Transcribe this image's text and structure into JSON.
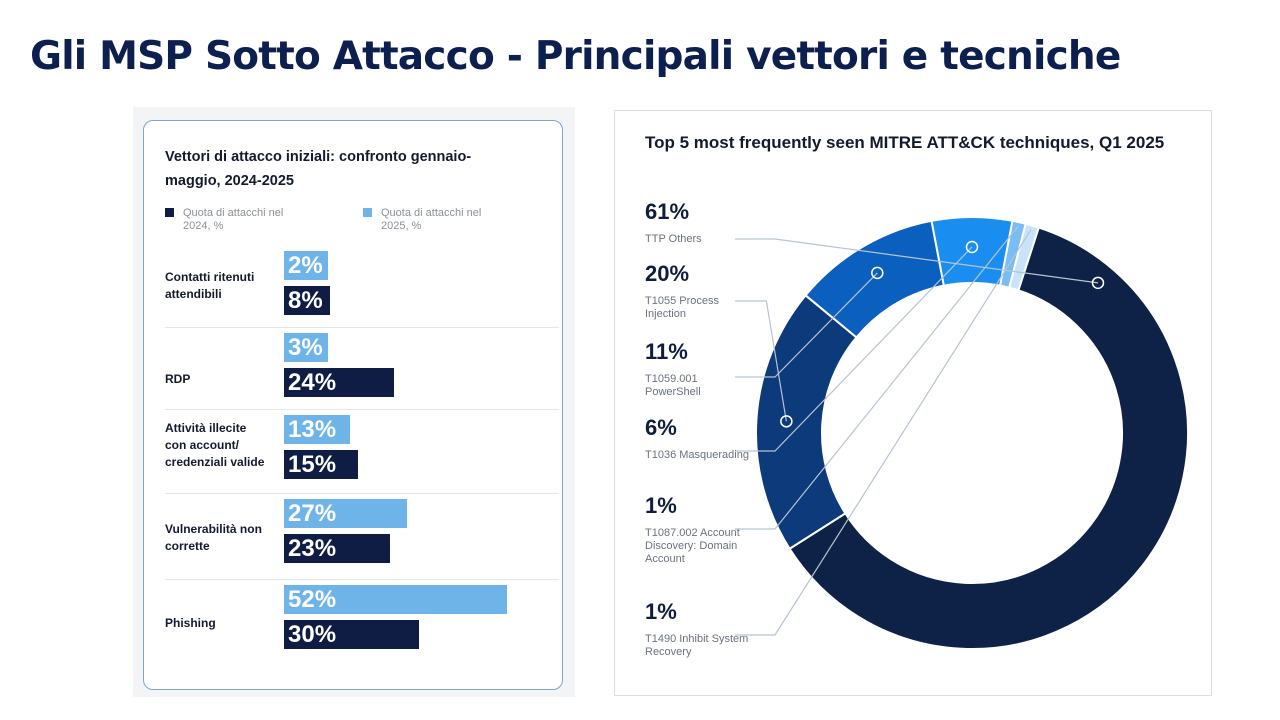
{
  "slide": {
    "title": "Gli MSP Sotto Attacco - Principali vettori e tecniche"
  },
  "chart_data": [
    {
      "type": "bar",
      "title": "Vettori di attacco iniziali: confronto gennaio-maggio, 2024-2025",
      "categories": [
        "Contatti ritenuti attendibili",
        "RDP",
        "Attività illecite con account/ credenziali valide",
        "Vulnerabilità non corrette",
        "Phishing"
      ],
      "series": [
        {
          "name": "Quota di attacchi nel 2025, %",
          "values": [
            2,
            3,
            13,
            27,
            52
          ],
          "labels": [
            "2%",
            "3%",
            "13%",
            "27%",
            "52%"
          ],
          "color": "#6fb4e8"
        },
        {
          "name": "Quota di attacchi nel 2024, %",
          "values": [
            8,
            24,
            15,
            23,
            30
          ],
          "labels": [
            "8%",
            "24%",
            "15%",
            "23%",
            "30%"
          ],
          "color": "#0f1d44"
        }
      ],
      "legend": [
        {
          "label": "Quota di attacchi nel 2024, %",
          "color": "#0f1d44"
        },
        {
          "label": "Quota di attacchi nel 2025, %",
          "color": "#6fb4e8"
        }
      ],
      "legend_position": "top",
      "grid": false
    },
    {
      "type": "pie",
      "title": "Top 5 most frequently seen MITRE ATT&CK techniques, Q1 2025",
      "labels": [
        "TTP Others",
        "T1055 Process Injection",
        "T1059.001 PowerShell",
        "T1036 Masquerading",
        "T1087.002 Account Discovery: Domain Account",
        "T1490 Inhibit System Recovery"
      ],
      "values": [
        61,
        20,
        11,
        6,
        1,
        1
      ],
      "value_labels": [
        "61%",
        "20%",
        "11%",
        "6%",
        "1%",
        "1%"
      ],
      "colors": [
        "#0e2147",
        "#0d3a7a",
        "#0a5fbf",
        "#1a8ef0",
        "#79bdf2",
        "#c9e3f8"
      ],
      "hole": true,
      "legend_position": "left"
    }
  ]
}
